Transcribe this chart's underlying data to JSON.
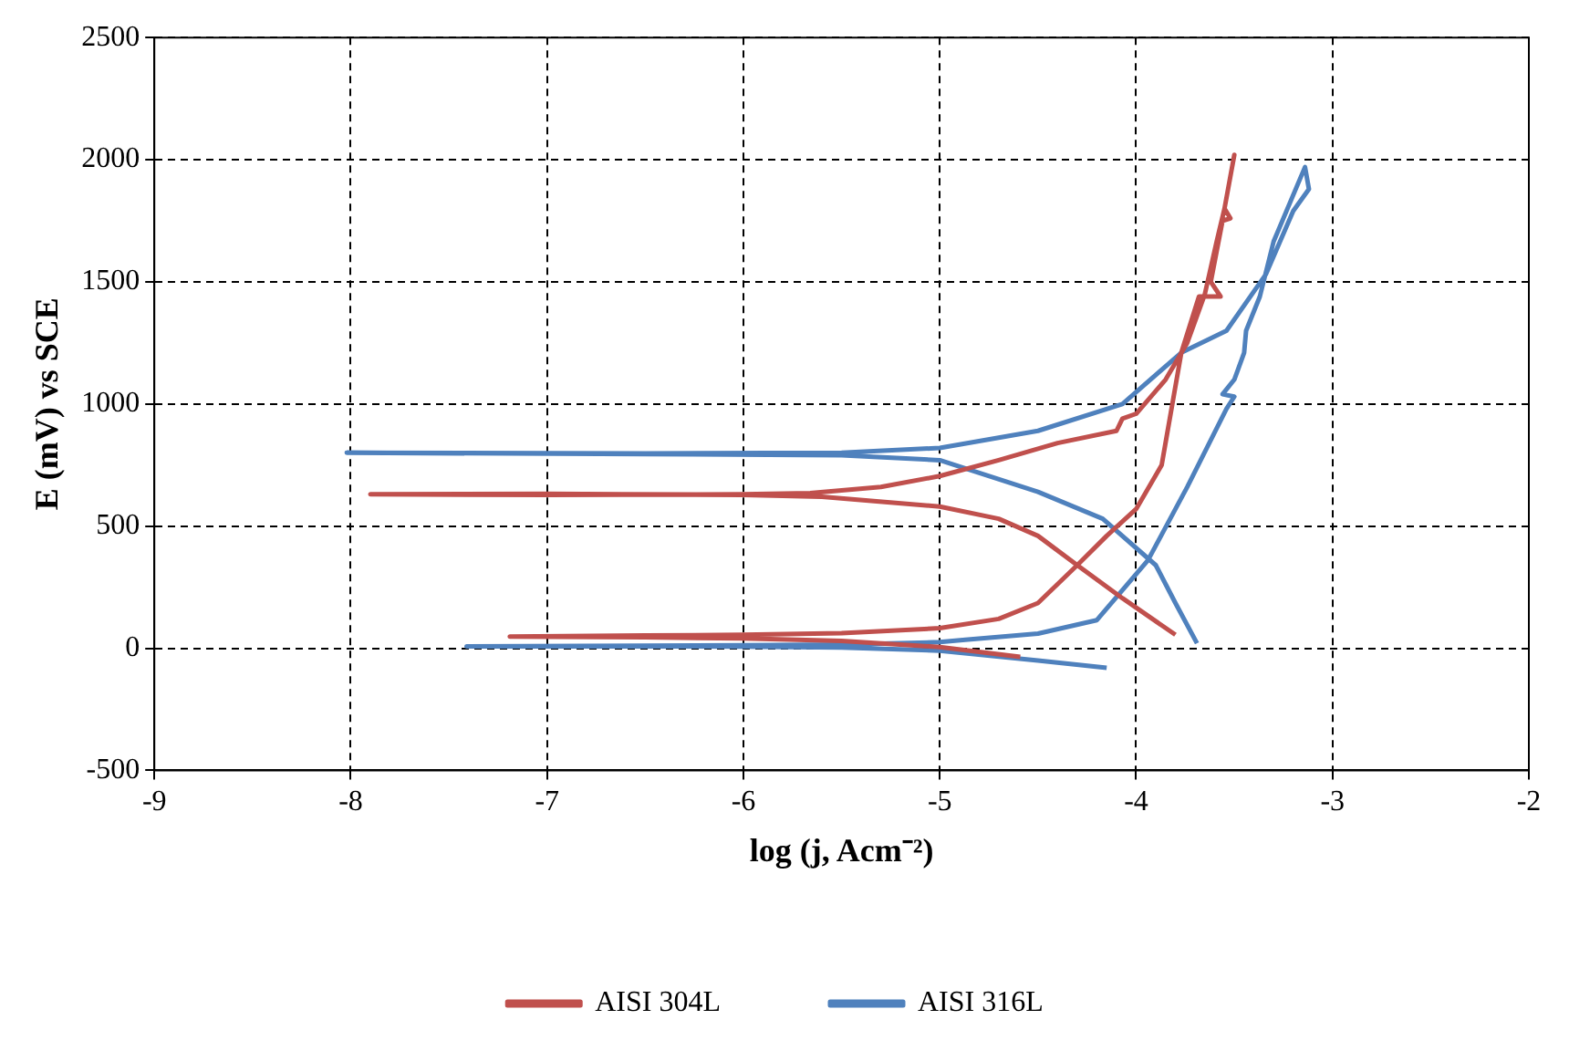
{
  "chart_data": {
    "type": "line",
    "xlabel": "log (j, Acm⁻²)",
    "ylabel": "E (mV) vs SCE",
    "xlim": [
      -9,
      -2
    ],
    "xticks": [
      -9,
      -8,
      -7,
      -6,
      -5,
      -4,
      -3,
      -2
    ],
    "ylim": [
      -500,
      2500
    ],
    "yticks": [
      -500,
      0,
      500,
      1000,
      1500,
      2000,
      2500
    ],
    "grid": true,
    "legend": "bottom",
    "marker": "none",
    "line_style": "solid",
    "series": [
      {
        "name": "AISI 304L",
        "color": "#c0504d",
        "x": [
          -4.59,
          -5.0,
          -5.5,
          -6.0,
          -6.5,
          -7.19,
          -6.5,
          -6.0,
          -5.5,
          -5.0,
          -4.7,
          -4.5,
          -4.3,
          -4.15,
          -4.0,
          -3.87,
          -3.77,
          -3.68,
          -3.57,
          -3.62,
          -3.56,
          -3.52,
          -3.55,
          -3.5,
          -3.55,
          -3.59,
          -3.65,
          -3.74,
          -3.85,
          -4.0,
          -4.07,
          -4.1,
          -4.4,
          -4.7,
          -5.0,
          -5.3,
          -5.66,
          -6.0,
          -7.0,
          -7.9,
          -7.0,
          -6.0,
          -5.6,
          -5.0,
          -4.7,
          -4.5,
          -4.3,
          -4.07,
          -3.8
        ],
        "values": [
          -35,
          5,
          30,
          40,
          45,
          48,
          52,
          55,
          62,
          82,
          120,
          185,
          340,
          460,
          570,
          750,
          1210,
          1440,
          1440,
          1500,
          1750,
          1760,
          1800,
          2020,
          1800,
          1665,
          1450,
          1250,
          1100,
          960,
          940,
          890,
          840,
          770,
          705,
          660,
          635,
          630,
          628,
          630,
          632,
          628,
          620,
          580,
          530,
          460,
          340,
          205,
          55
        ]
      },
      {
        "name": "AISI 316L",
        "color": "#4f81bd",
        "x": [
          -4.15,
          -4.5,
          -5.0,
          -5.5,
          -6.0,
          -7.41,
          -6.0,
          -5.5,
          -5.0,
          -4.87,
          -4.5,
          -4.2,
          -3.94,
          -3.74,
          -3.54,
          -3.5,
          -3.56,
          -3.5,
          -3.45,
          -3.44,
          -3.37,
          -3.3,
          -3.14,
          -3.12,
          -3.2,
          -3.34,
          -3.54,
          -3.77,
          -4.07,
          -4.5,
          -5.0,
          -5.5,
          -6.5,
          -8.02,
          -6.5,
          -5.5,
          -5.0,
          -4.5,
          -4.17,
          -3.9,
          -3.8,
          -3.69
        ],
        "values": [
          -80,
          -50,
          -10,
          3,
          7,
          8,
          12,
          15,
          25,
          35,
          60,
          115,
          360,
          660,
          980,
          1030,
          1040,
          1100,
          1210,
          1300,
          1440,
          1665,
          1970,
          1880,
          1790,
          1530,
          1300,
          1210,
          1000,
          890,
          820,
          800,
          798,
          800,
          795,
          790,
          770,
          640,
          530,
          340,
          185,
          20
        ]
      }
    ]
  }
}
